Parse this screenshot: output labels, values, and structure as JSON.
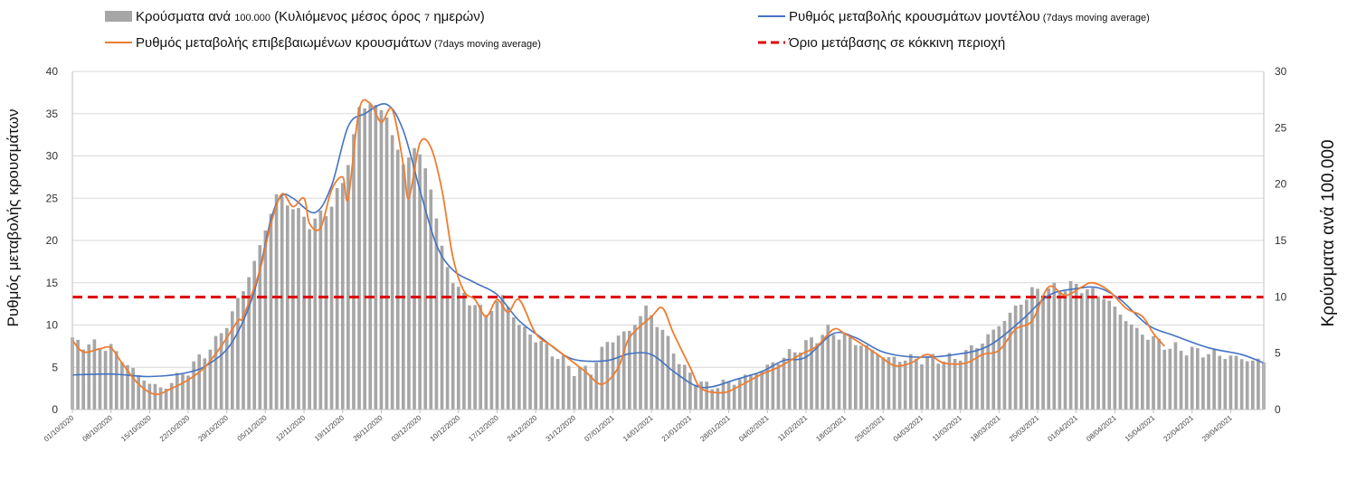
{
  "chart_data": {
    "type": "bar+line",
    "title": "",
    "legend": {
      "placement": "top",
      "items": [
        {
          "key": "bars",
          "main": "Κρούσματα ανά ",
          "small": "100.000",
          "main2": " (Κυλιόμενος μέσος όρος ",
          "small2": "7",
          "main3": " ημερών)"
        },
        {
          "key": "model",
          "main": "Ρυθμός μεταβολής κρουσμάτων μοντέλου",
          "small": " (7days moving average)"
        },
        {
          "key": "confirmed",
          "main": "Ρυθμός μεταβολής επιβεβαιωμένων κρουσμάτων",
          "small": " (7days moving average)"
        },
        {
          "key": "threshold",
          "main": "Όριο μετάβασης σε κόκκινη περιοχή",
          "small": ""
        }
      ]
    },
    "colors": {
      "bars": "#a6a6a6",
      "model": "#4472c4",
      "confirmed": "#ed7d31",
      "threshold": "#e00000",
      "grid": "#d9d9d9"
    },
    "ylabel_left": "Ρυθμός μεταβολής κρουσμάτων",
    "ylabel_right": "Κρούσματα ανά 100.000",
    "ylim_left": [
      0,
      40
    ],
    "ylim_right": [
      0,
      30
    ],
    "yticks_left": [
      "0",
      "5",
      "10",
      "15",
      "20",
      "25",
      "30",
      "35",
      "40"
    ],
    "yticks_right": [
      "0",
      "5",
      "10",
      "15",
      "20",
      "25",
      "30"
    ],
    "x_start": "2020-10-01",
    "x_end": "2021-05-05",
    "xticks": [
      "01/10/2020",
      "08/10/2020",
      "15/10/2020",
      "22/10/2020",
      "29/10/2020",
      "05/11/2020",
      "12/11/2020",
      "19/11/2020",
      "26/11/2020",
      "03/12/2020",
      "10/12/2020",
      "17/12/2020",
      "24/12/2020",
      "31/12/2020",
      "07/01/2021",
      "14/01/2021",
      "21/01/2021",
      "28/01/2021",
      "04/02/2021",
      "11/02/2021",
      "18/02/2021",
      "25/02/2021",
      "04/03/2021",
      "11/03/2021",
      "18/03/2021",
      "25/03/2021",
      "01/04/2021",
      "08/04/2021",
      "15/04/2021",
      "22/04/2021",
      "29/04/2021"
    ],
    "threshold_left": 13.3,
    "bars_right_axis": {
      "anchors": [
        [
          "2020-10-01",
          6
        ],
        [
          "2020-10-08",
          5.5
        ],
        [
          "2020-10-13",
          3
        ],
        [
          "2020-10-17",
          1.8
        ],
        [
          "2020-10-22",
          3.5
        ],
        [
          "2020-10-27",
          6
        ],
        [
          "2020-10-30",
          8.5
        ],
        [
          "2020-11-03",
          13
        ],
        [
          "2020-11-07",
          19
        ],
        [
          "2020-11-10",
          18
        ],
        [
          "2020-11-13",
          16.5
        ],
        [
          "2020-11-16",
          17.5
        ],
        [
          "2020-11-19",
          20
        ],
        [
          "2020-11-22",
          26.5
        ],
        [
          "2020-11-24",
          27.3
        ],
        [
          "2020-11-27",
          26
        ],
        [
          "2020-11-30",
          21.5
        ],
        [
          "2020-12-02",
          23.5
        ],
        [
          "2020-12-05",
          20
        ],
        [
          "2020-12-07",
          14
        ],
        [
          "2020-12-10",
          10.5
        ],
        [
          "2020-12-15",
          8.5
        ],
        [
          "2020-12-18",
          10
        ],
        [
          "2020-12-21",
          7.5
        ],
        [
          "2020-12-26",
          5.5
        ],
        [
          "2020-12-31",
          3.5
        ],
        [
          "2021-01-03",
          3.5
        ],
        [
          "2021-01-06",
          6
        ],
        [
          "2021-01-10",
          7
        ],
        [
          "2021-01-13",
          9
        ],
        [
          "2021-01-16",
          7
        ],
        [
          "2021-01-20",
          3.5
        ],
        [
          "2021-01-24",
          2
        ],
        [
          "2021-01-29",
          2.5
        ],
        [
          "2021-02-03",
          3.5
        ],
        [
          "2021-02-10",
          5.5
        ],
        [
          "2021-02-15",
          7
        ],
        [
          "2021-02-20",
          6
        ],
        [
          "2021-02-26",
          4.5
        ],
        [
          "2021-03-04",
          4.5
        ],
        [
          "2021-03-10",
          4.5
        ],
        [
          "2021-03-15",
          6
        ],
        [
          "2021-03-19",
          8
        ],
        [
          "2021-03-24",
          10.5
        ],
        [
          "2021-04-01",
          11
        ],
        [
          "2021-04-06",
          10
        ],
        [
          "2021-04-12",
          7
        ],
        [
          "2021-04-18",
          5.5
        ],
        [
          "2021-04-25",
          5
        ],
        [
          "2021-05-05",
          4.2
        ]
      ]
    },
    "series": [
      {
        "name": "Ρυθμός μεταβολής κρουσμάτων μοντέλου",
        "key": "model",
        "axis": "left",
        "points": [
          [
            "2020-10-01",
            4.1
          ],
          [
            "2020-10-08",
            4.2
          ],
          [
            "2020-10-15",
            3.9
          ],
          [
            "2020-10-22",
            4.4
          ],
          [
            "2020-10-26",
            5.5
          ],
          [
            "2020-10-30",
            8
          ],
          [
            "2020-11-03",
            14
          ],
          [
            "2020-11-06",
            22.5
          ],
          [
            "2020-11-08",
            25.3
          ],
          [
            "2020-11-10",
            25
          ],
          [
            "2020-11-14",
            23.3
          ],
          [
            "2020-11-17",
            26.5
          ],
          [
            "2020-11-20",
            33.5
          ],
          [
            "2020-11-23",
            35
          ],
          [
            "2020-11-27",
            36.1
          ],
          [
            "2020-11-30",
            33
          ],
          [
            "2020-12-03",
            26
          ],
          [
            "2020-12-06",
            19.5
          ],
          [
            "2020-12-09",
            16.5
          ],
          [
            "2020-12-13",
            15
          ],
          [
            "2020-12-17",
            13.6
          ],
          [
            "2020-12-21",
            10.5
          ],
          [
            "2020-12-25",
            8.5
          ],
          [
            "2020-12-29",
            6.5
          ],
          [
            "2021-01-01",
            5.8
          ],
          [
            "2021-01-06",
            5.8
          ],
          [
            "2021-01-10",
            6.6
          ],
          [
            "2021-01-14",
            6.5
          ],
          [
            "2021-01-18",
            4.5
          ],
          [
            "2021-01-22",
            2.8
          ],
          [
            "2021-01-25",
            2.7
          ],
          [
            "2021-01-29",
            3.5
          ],
          [
            "2021-02-03",
            4.5
          ],
          [
            "2021-02-07",
            5.8
          ],
          [
            "2021-02-11",
            6.2
          ],
          [
            "2021-02-16",
            9
          ],
          [
            "2021-02-20",
            8.5
          ],
          [
            "2021-02-25",
            6.8
          ],
          [
            "2021-03-03",
            6.2
          ],
          [
            "2021-03-10",
            6.5
          ],
          [
            "2021-03-16",
            7.5
          ],
          [
            "2021-03-22",
            10.5
          ],
          [
            "2021-03-27",
            13.5
          ],
          [
            "2021-04-01",
            14.3
          ],
          [
            "2021-04-05",
            14.4
          ],
          [
            "2021-04-09",
            13
          ],
          [
            "2021-04-14",
            10
          ],
          [
            "2021-04-19",
            8.7
          ],
          [
            "2021-04-25",
            7.3
          ],
          [
            "2021-05-01",
            6.5
          ],
          [
            "2021-05-05",
            5.5
          ]
        ]
      },
      {
        "name": "Ρυθμός μεταβολής επιβεβαιωμένων κρουσμάτων",
        "key": "confirmed",
        "axis": "left",
        "points": [
          [
            "2020-10-01",
            8.2
          ],
          [
            "2020-10-03",
            6.8
          ],
          [
            "2020-10-06",
            7.2
          ],
          [
            "2020-10-08",
            7.3
          ],
          [
            "2020-10-10",
            5.5
          ],
          [
            "2020-10-13",
            3
          ],
          [
            "2020-10-16",
            1.8
          ],
          [
            "2020-10-19",
            2.5
          ],
          [
            "2020-10-22",
            3.5
          ],
          [
            "2020-10-25",
            5
          ],
          [
            "2020-10-28",
            7.5
          ],
          [
            "2020-10-31",
            10.5
          ],
          [
            "2020-11-01",
            11
          ],
          [
            "2020-11-04",
            16.5
          ],
          [
            "2020-11-06",
            22
          ],
          [
            "2020-11-08",
            25.5
          ],
          [
            "2020-11-10",
            24
          ],
          [
            "2020-11-12",
            25
          ],
          [
            "2020-11-13",
            22
          ],
          [
            "2020-11-15",
            21.5
          ],
          [
            "2020-11-17",
            26
          ],
          [
            "2020-11-19",
            27.5
          ],
          [
            "2020-11-20",
            25
          ],
          [
            "2020-11-22",
            35.5
          ],
          [
            "2020-11-24",
            36.2
          ],
          [
            "2020-11-26",
            34
          ],
          [
            "2020-11-28",
            35.5
          ],
          [
            "2020-11-30",
            29
          ],
          [
            "2020-12-01",
            25
          ],
          [
            "2020-12-03",
            31.5
          ],
          [
            "2020-12-05",
            31
          ],
          [
            "2020-12-07",
            26
          ],
          [
            "2020-12-09",
            18
          ],
          [
            "2020-12-11",
            14
          ],
          [
            "2020-12-13",
            13
          ],
          [
            "2020-12-15",
            11
          ],
          [
            "2020-12-17",
            13
          ],
          [
            "2020-12-19",
            11.5
          ],
          [
            "2020-12-21",
            13
          ],
          [
            "2020-12-24",
            9
          ],
          [
            "2020-12-27",
            7.5
          ],
          [
            "2020-12-30",
            6
          ],
          [
            "2021-01-02",
            4.5
          ],
          [
            "2021-01-05",
            3
          ],
          [
            "2021-01-08",
            5
          ],
          [
            "2021-01-10",
            8.5
          ],
          [
            "2021-01-14",
            11
          ],
          [
            "2021-01-16",
            12
          ],
          [
            "2021-01-18",
            9
          ],
          [
            "2021-01-21",
            5
          ],
          [
            "2021-01-23",
            2.5
          ],
          [
            "2021-01-27",
            2
          ],
          [
            "2021-01-30",
            2.8
          ],
          [
            "2021-02-03",
            4.2
          ],
          [
            "2021-02-06",
            5
          ],
          [
            "2021-02-10",
            6.5
          ],
          [
            "2021-02-13",
            7.5
          ],
          [
            "2021-02-16",
            9.5
          ],
          [
            "2021-02-18",
            9
          ],
          [
            "2021-02-21",
            7.8
          ],
          [
            "2021-02-24",
            6.5
          ],
          [
            "2021-02-27",
            5.2
          ],
          [
            "2021-03-02",
            5.5
          ],
          [
            "2021-03-05",
            6.5
          ],
          [
            "2021-03-08",
            5.5
          ],
          [
            "2021-03-12",
            5.5
          ],
          [
            "2021-03-15",
            6.5
          ],
          [
            "2021-03-18",
            7
          ],
          [
            "2021-03-21",
            9.5
          ],
          [
            "2021-03-24",
            10.5
          ],
          [
            "2021-03-27",
            14.5
          ],
          [
            "2021-03-30",
            13.5
          ],
          [
            "2021-04-02",
            14.5
          ],
          [
            "2021-04-04",
            15
          ],
          [
            "2021-04-07",
            14
          ],
          [
            "2021-04-10",
            12
          ],
          [
            "2021-04-13",
            11
          ],
          [
            "2021-04-15",
            9
          ],
          [
            "2021-04-17",
            7.5
          ]
        ]
      }
    ]
  }
}
